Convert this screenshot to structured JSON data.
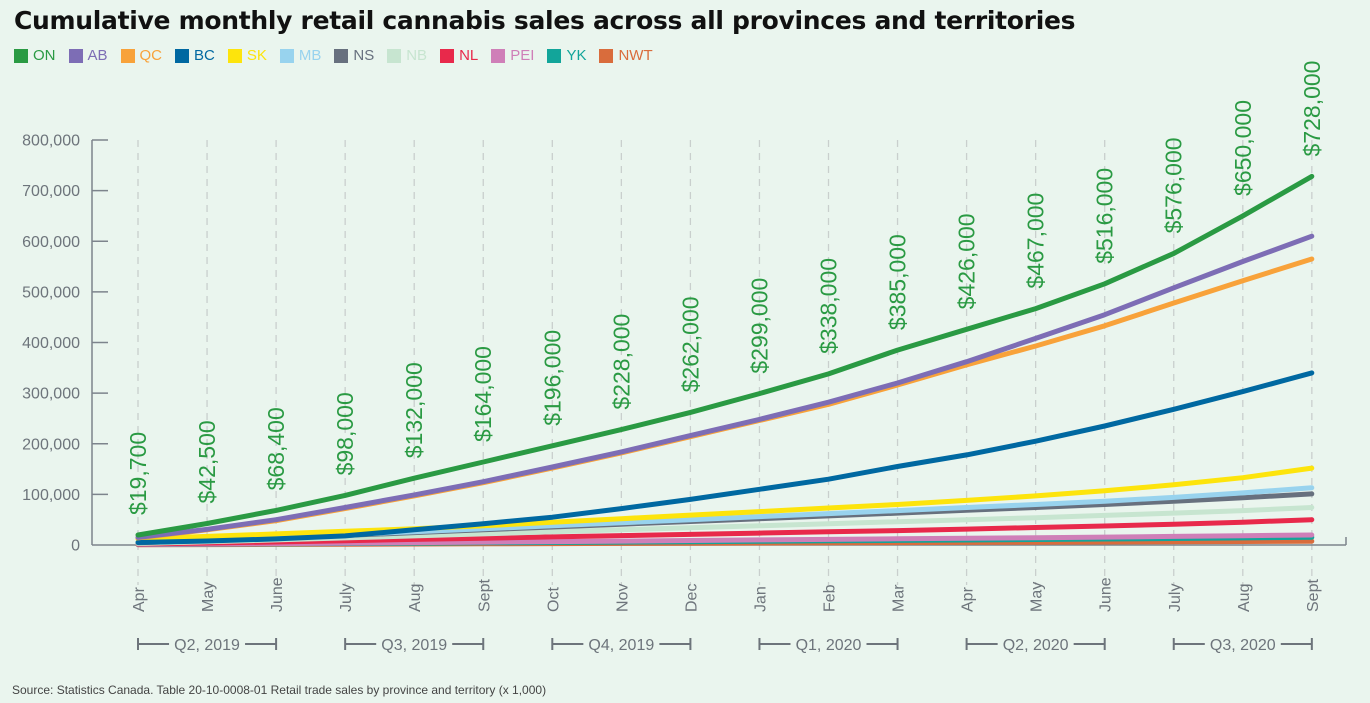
{
  "chart_data": {
    "type": "line",
    "title": "Cumulative monthly retail cannabis sales across all provinces and territories",
    "xlabel": "",
    "ylabel": "",
    "ylim": [
      0,
      800000
    ],
    "yticks": [
      0,
      100000,
      200000,
      300000,
      400000,
      500000,
      600000,
      700000,
      800000
    ],
    "ytick_labels": [
      "0",
      "100,000",
      "200,000",
      "300,000",
      "400,000",
      "500,000",
      "600,000",
      "700,000",
      "800,000"
    ],
    "grid": "vertical-dashed",
    "legend_position": "top-left",
    "categories": [
      "Apr",
      "May",
      "June",
      "July",
      "Aug",
      "Sept",
      "Oct",
      "Nov",
      "Dec",
      "Jan",
      "Feb",
      "Mar",
      "Apr",
      "May",
      "June",
      "July",
      "Aug",
      "Sept"
    ],
    "quarters": [
      {
        "label": "Q2, 2019",
        "start": 0,
        "end": 2
      },
      {
        "label": "Q3, 2019",
        "start": 3,
        "end": 5
      },
      {
        "label": "Q4, 2019",
        "start": 6,
        "end": 8
      },
      {
        "label": "Q1, 2020",
        "start": 9,
        "end": 11
      },
      {
        "label": "Q2, 2020",
        "start": 12,
        "end": 14
      },
      {
        "label": "Q3, 2020",
        "start": 15,
        "end": 17
      }
    ],
    "annotations": [
      "$19,700",
      "$42,500",
      "$68,400",
      "$98,000",
      "$132,000",
      "$164,000",
      "$196,000",
      "$228,000",
      "$262,000",
      "$299,000",
      "$338,000",
      "$385,000",
      "$426,000",
      "$467,000",
      "$516,000",
      "$576,000",
      "$650,000",
      "$728,000"
    ],
    "annotation_series": "ON",
    "series": [
      {
        "name": "NWT",
        "color": "#d96c3c",
        "values": [
          500,
          800,
          1100,
          1500,
          1900,
          2300,
          2700,
          3100,
          3500,
          3900,
          4300,
          4700,
          5100,
          5500,
          6000,
          6500,
          7000,
          7500
        ]
      },
      {
        "name": "YK",
        "color": "#12a59a",
        "values": [
          1000,
          1600,
          2200,
          2900,
          3600,
          4300,
          5000,
          5800,
          6600,
          7400,
          8200,
          9000,
          9900,
          10800,
          11800,
          12900,
          14000,
          15200
        ]
      },
      {
        "name": "PEI",
        "color": "#cf7fb8",
        "values": [
          1200,
          2000,
          2800,
          3800,
          4800,
          5800,
          6800,
          7800,
          8900,
          10000,
          11100,
          12200,
          13300,
          14500,
          15700,
          17000,
          18400,
          19800
        ]
      },
      {
        "name": "NL",
        "color": "#e8294b",
        "values": [
          2000,
          4000,
          6000,
          8500,
          11000,
          13500,
          16000,
          18500,
          21000,
          23500,
          26000,
          28500,
          31500,
          34500,
          37500,
          41000,
          45000,
          50000
        ]
      },
      {
        "name": "NB",
        "color": "#c7e5d0",
        "values": [
          3000,
          6500,
          10000,
          14000,
          18000,
          22000,
          26000,
          30000,
          34000,
          38000,
          42000,
          46000,
          50000,
          54000,
          58500,
          63000,
          68000,
          74000
        ]
      },
      {
        "name": "NS",
        "color": "#67707e",
        "values": [
          4500,
          9000,
          14000,
          19000,
          24500,
          30000,
          35500,
          41000,
          46500,
          52000,
          57500,
          63000,
          68500,
          74000,
          80000,
          86500,
          93500,
          101000
        ]
      },
      {
        "name": "MB",
        "color": "#98d3ee",
        "values": [
          5500,
          10500,
          15500,
          20500,
          26000,
          32000,
          38000,
          44000,
          50000,
          56000,
          62000,
          68000,
          74000,
          80000,
          86500,
          94000,
          103000,
          113000
        ]
      },
      {
        "name": "SK",
        "color": "#fde40c",
        "values": [
          12000,
          17000,
          22000,
          27000,
          32000,
          38000,
          45000,
          52000,
          59000,
          66000,
          73000,
          80000,
          88000,
          97000,
          107000,
          119000,
          133000,
          152000
        ]
      },
      {
        "name": "BC",
        "color": "#0068a1",
        "values": [
          5000,
          8000,
          12000,
          18000,
          30000,
          42000,
          55000,
          72000,
          90000,
          110000,
          130000,
          155000,
          178000,
          205000,
          235000,
          268000,
          303000,
          340000
        ]
      },
      {
        "name": "QC",
        "color": "#f8a23a",
        "values": [
          14000,
          30000,
          48000,
          72000,
          97000,
          123000,
          152000,
          182000,
          214000,
          246000,
          278000,
          316000,
          356000,
          393000,
          433000,
          478000,
          522000,
          565000
        ]
      },
      {
        "name": "AB",
        "color": "#7d6db5",
        "values": [
          15000,
          31000,
          50000,
          74000,
          99000,
          125000,
          154000,
          184000,
          216000,
          248000,
          282000,
          320000,
          362000,
          408000,
          455000,
          508000,
          560000,
          610000
        ]
      },
      {
        "name": "ON",
        "color": "#2a9a43",
        "values": [
          19700,
          42500,
          68400,
          98000,
          132000,
          164000,
          196000,
          228000,
          262000,
          299000,
          338000,
          385000,
          426000,
          467000,
          516000,
          576000,
          650000,
          728000
        ]
      }
    ],
    "legend": [
      {
        "name": "ON",
        "color": "#2a9a43"
      },
      {
        "name": "AB",
        "color": "#7d6db5"
      },
      {
        "name": "QC",
        "color": "#f8a23a"
      },
      {
        "name": "BC",
        "color": "#0068a1"
      },
      {
        "name": "SK",
        "color": "#fde40c"
      },
      {
        "name": "MB",
        "color": "#98d3ee"
      },
      {
        "name": "NS",
        "color": "#67707e"
      },
      {
        "name": "NB",
        "color": "#c7e5d0"
      },
      {
        "name": "NL",
        "color": "#e8294b"
      },
      {
        "name": "PEI",
        "color": "#cf7fb8"
      },
      {
        "name": "YK",
        "color": "#12a59a"
      },
      {
        "name": "NWT",
        "color": "#d96c3c"
      }
    ],
    "source": "Source: Statistics Canada. Table 20-10-0008-01 Retail trade sales by province and territory (x 1,000)"
  }
}
